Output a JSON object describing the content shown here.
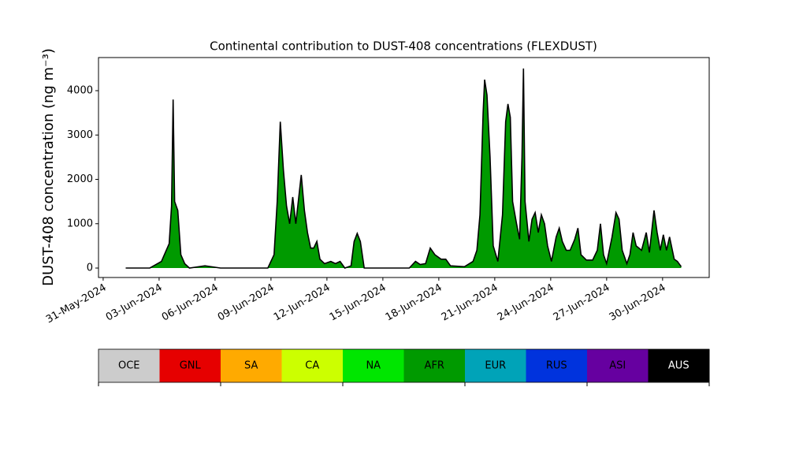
{
  "chart_data": [
    {
      "type": "area",
      "title": "Continental contribution to DUST-408 concentrations (FLEXDUST)",
      "ylabel": "DUST-408 concentration (ng m⁻³)",
      "xlim": [
        "2024-05-30T18:00",
        "2024-07-02T12:00"
      ],
      "ylim": [
        -213,
        4747
      ],
      "yticks": [
        0,
        1000,
        2000,
        3000,
        4000
      ],
      "xticks": [
        {
          "value": "2024-05-31T00:00",
          "label": "31-May-2024"
        },
        {
          "value": "2024-06-03T00:00",
          "label": "03-Jun-2024"
        },
        {
          "value": "2024-06-06T00:00",
          "label": "06-Jun-2024"
        },
        {
          "value": "2024-06-09T00:00",
          "label": "09-Jun-2024"
        },
        {
          "value": "2024-06-12T00:00",
          "label": "12-Jun-2024"
        },
        {
          "value": "2024-06-15T00:00",
          "label": "15-Jun-2024"
        },
        {
          "value": "2024-06-18T00:00",
          "label": "18-Jun-2024"
        },
        {
          "value": "2024-06-21T00:00",
          "label": "21-Jun-2024"
        },
        {
          "value": "2024-06-24T00:00",
          "label": "24-Jun-2024"
        },
        {
          "value": "2024-06-27T00:00",
          "label": "27-Jun-2024"
        },
        {
          "value": "2024-06-30T00:00",
          "label": "30-Jun-2024"
        }
      ],
      "x": [
        "2024-06-01T05:00",
        "2024-06-02T12:00",
        "2024-06-02T22:00",
        "2024-06-03T03:00",
        "2024-06-03T08:00",
        "2024-06-03T13:00",
        "2024-06-03T16:00",
        "2024-06-03T18:00",
        "2024-06-03T20:00",
        "2024-06-04T00:00",
        "2024-06-04T04:00",
        "2024-06-04T09:00",
        "2024-06-04T15:00",
        "2024-06-05T11:00",
        "2024-06-06T07:00",
        "2024-06-08T20:00",
        "2024-06-09T04:00",
        "2024-06-09T08:00",
        "2024-06-09T12:00",
        "2024-06-09T16:00",
        "2024-06-09T20:00",
        "2024-06-10T00:00",
        "2024-06-10T04:00",
        "2024-06-10T08:00",
        "2024-06-10T15:00",
        "2024-06-10T19:00",
        "2024-06-10T23:00",
        "2024-06-11T03:00",
        "2024-06-11T07:00",
        "2024-06-11T11:00",
        "2024-06-11T15:00",
        "2024-06-11T21:00",
        "2024-06-12T05:00",
        "2024-06-12T11:00",
        "2024-06-12T17:00",
        "2024-06-12T23:00",
        "2024-06-13T07:00",
        "2024-06-13T11:00",
        "2024-06-13T15:00",
        "2024-06-13T19:00",
        "2024-06-14T00:00",
        "2024-06-15T14:00",
        "2024-06-16T10:00",
        "2024-06-16T18:00",
        "2024-06-17T00:00",
        "2024-06-17T07:00",
        "2024-06-17T13:00",
        "2024-06-17T19:00",
        "2024-06-18T03:00",
        "2024-06-18T09:00",
        "2024-06-18T15:00",
        "2024-06-19T09:00",
        "2024-06-19T20:00",
        "2024-06-20T01:00",
        "2024-06-20T05:00",
        "2024-06-20T09:00",
        "2024-06-20T11:00",
        "2024-06-20T14:00",
        "2024-06-20T18:00",
        "2024-06-20T22:00",
        "2024-06-21T04:00",
        "2024-06-21T10:00",
        "2024-06-21T14:00",
        "2024-06-21T17:00",
        "2024-06-21T20:00",
        "2024-06-21T23:00",
        "2024-06-22T04:00",
        "2024-06-22T08:00",
        "2024-06-22T11:00",
        "2024-06-22T13:00",
        "2024-06-22T15:00",
        "2024-06-22T20:00",
        "2024-06-23T00:00",
        "2024-06-23T04:00",
        "2024-06-23T08:00",
        "2024-06-23T12:00",
        "2024-06-23T16:00",
        "2024-06-23T20:00",
        "2024-06-24T01:00",
        "2024-06-24T07:00",
        "2024-06-24T11:00",
        "2024-06-24T15:00",
        "2024-06-24T20:00",
        "2024-06-25T01:00",
        "2024-06-25T07:00",
        "2024-06-25T11:00",
        "2024-06-25T15:00",
        "2024-06-25T22:00",
        "2024-06-26T06:00",
        "2024-06-26T12:00",
        "2024-06-26T16:00",
        "2024-06-26T20:00",
        "2024-06-27T00:00",
        "2024-06-27T07:00",
        "2024-06-27T12:00",
        "2024-06-27T16:00",
        "2024-06-27T20:00",
        "2024-06-28T02:00",
        "2024-06-28T06:00",
        "2024-06-28T10:00",
        "2024-06-28T14:00",
        "2024-06-28T21:00",
        "2024-06-29T03:00",
        "2024-06-29T07:00",
        "2024-06-29T13:00",
        "2024-06-29T17:00",
        "2024-06-29T21:00",
        "2024-06-30T01:00",
        "2024-06-30T05:00",
        "2024-06-30T09:00",
        "2024-06-30T15:00",
        "2024-06-30T19:00",
        "2024-07-01T00:00"
      ],
      "series": [
        {
          "name": "AFR",
          "color": "#009a00",
          "outline": "#000000",
          "values": [
            0,
            0,
            100,
            150,
            350,
            550,
            1400,
            3800,
            1500,
            1300,
            300,
            100,
            0,
            50,
            0,
            0,
            300,
            1500,
            3300,
            2200,
            1400,
            1000,
            1600,
            1000,
            2100,
            1300,
            800,
            450,
            450,
            600,
            200,
            100,
            150,
            100,
            150,
            0,
            50,
            600,
            780,
            600,
            0,
            0,
            0,
            150,
            80,
            100,
            450,
            300,
            200,
            200,
            50,
            30,
            150,
            400,
            1200,
            3500,
            4250,
            3900,
            2500,
            500,
            150,
            1200,
            3300,
            3700,
            3400,
            1500,
            1000,
            650,
            2500,
            4500,
            1500,
            600,
            1100,
            1250,
            800,
            1200,
            1000,
            500,
            150,
            700,
            900,
            600,
            400,
            400,
            650,
            900,
            300,
            180,
            180,
            400,
            1000,
            300,
            100,
            700,
            1250,
            1100,
            400,
            100,
            300,
            800,
            500,
            400,
            800,
            350,
            1300,
            800,
            400,
            750,
            400,
            700,
            200,
            150,
            30
          ]
        }
      ]
    },
    {
      "type": "colorbar",
      "categories": [
        "OCE",
        "GNL",
        "SA",
        "CA",
        "NA",
        "AFR",
        "EUR",
        "RUS",
        "ASI",
        "AUS"
      ],
      "colors": [
        "#cccccc",
        "#e60000",
        "#ffaa00",
        "#ccff00",
        "#00e600",
        "#009a00",
        "#00a3b8",
        "#0033dd",
        "#6600a0",
        "#000000"
      ]
    }
  ]
}
